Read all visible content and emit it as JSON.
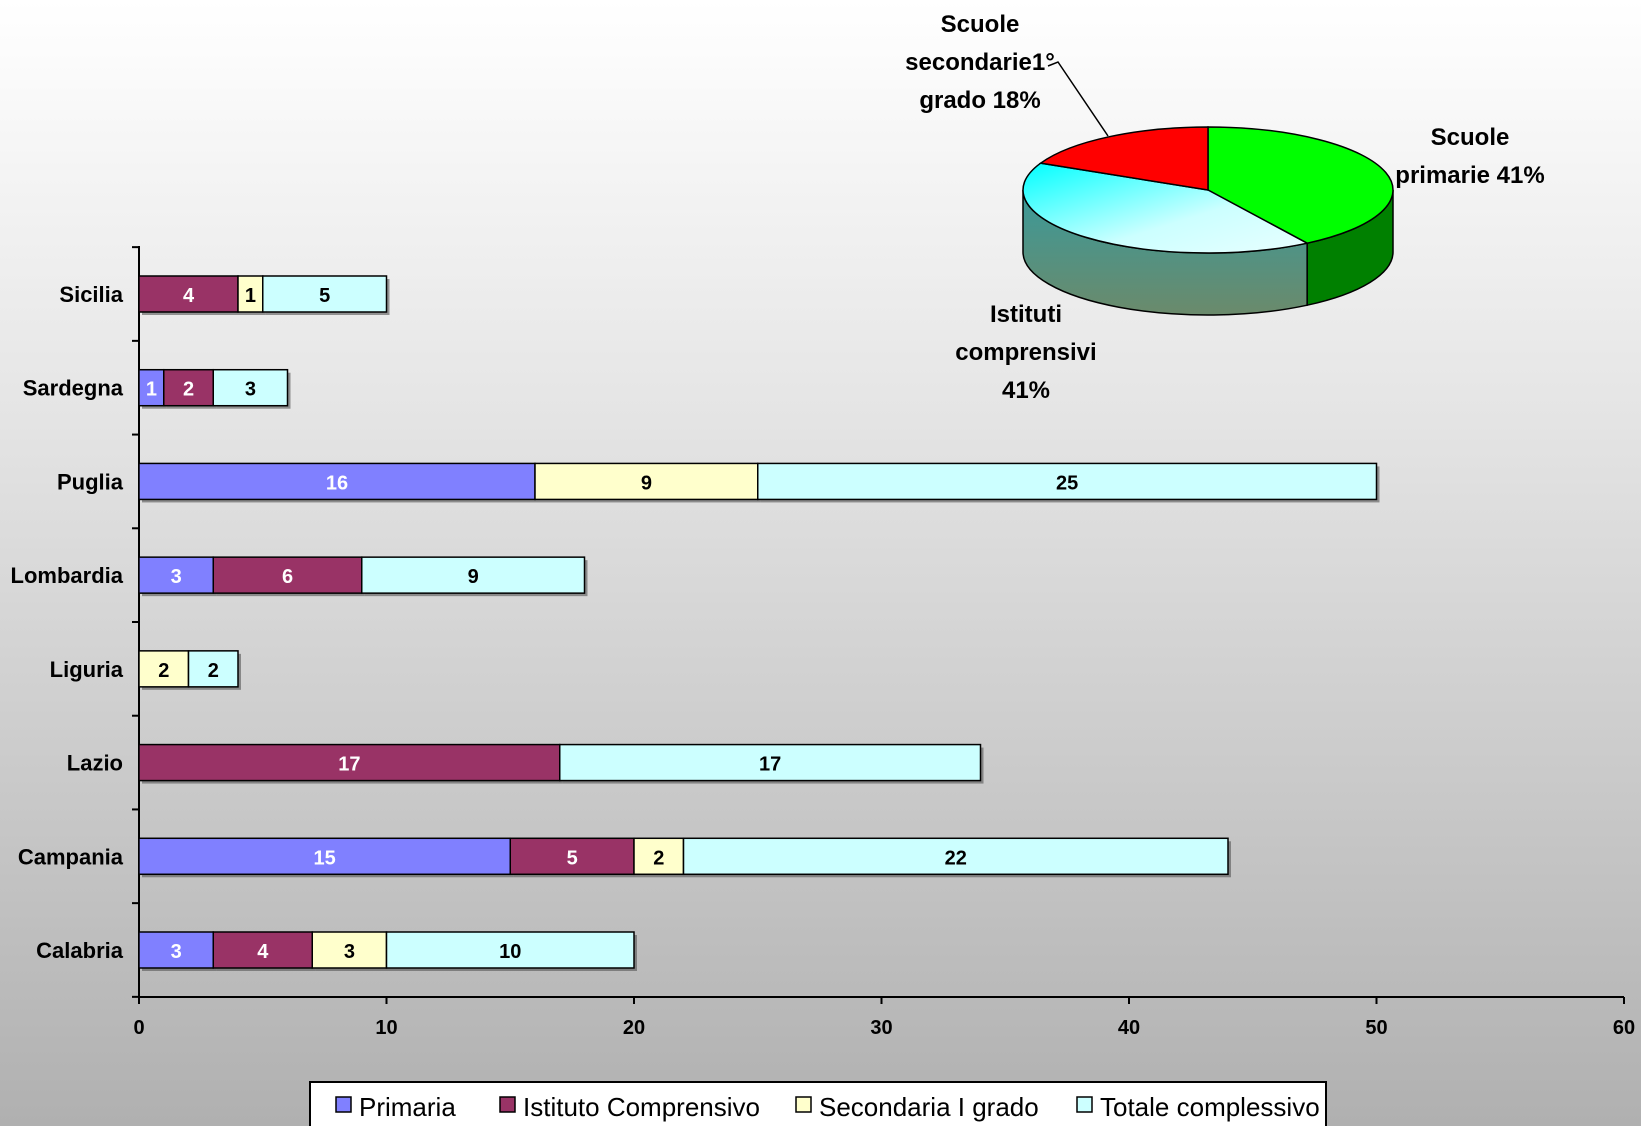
{
  "chart_data": [
    {
      "type": "bar",
      "orientation": "horizontal",
      "stacked": true,
      "categories": [
        "Calabria",
        "Campania",
        "Lazio",
        "Liguria",
        "Lombardia",
        "Puglia",
        "Sardegna",
        "Sicilia"
      ],
      "series": [
        {
          "name": "Primaria",
          "values": [
            3,
            15,
            0,
            0,
            3,
            16,
            1,
            0
          ]
        },
        {
          "name": "Istituto Comprensivo",
          "values": [
            4,
            5,
            17,
            0,
            6,
            0,
            2,
            4
          ]
        },
        {
          "name": "Secondaria I grado",
          "values": [
            3,
            2,
            0,
            2,
            0,
            9,
            0,
            1
          ]
        },
        {
          "name": "Totale complessivo",
          "values": [
            10,
            22,
            17,
            2,
            9,
            25,
            3,
            5
          ]
        }
      ],
      "xlim": [
        0,
        60
      ],
      "xticks": [
        "0",
        "10",
        "20",
        "30",
        "40",
        "50",
        "60"
      ],
      "legend": "bottom",
      "colors": {
        "Primaria": "#8080ff",
        "Istituto Comprensivo": "#993366",
        "Secondaria I grado": "#ffffcc",
        "Totale complessivo": "#ccffff"
      }
    },
    {
      "type": "pie",
      "style": "3d",
      "slices": [
        {
          "label": "Scuole primarie 41%",
          "lines": [
            "Scuole",
            "primarie 41%"
          ],
          "value": 41,
          "color": "#00ff00"
        },
        {
          "label": "Istituti comprensivi 41%",
          "lines": [
            "Istituti",
            "comprensivi",
            "41%"
          ],
          "value": 41,
          "color": "#ccffff"
        },
        {
          "label": "Scuole secondarie1° grado 18%",
          "lines": [
            "Scuole",
            "secondarie1°",
            "grado 18%"
          ],
          "value": 18,
          "color": "#ff0000"
        }
      ]
    }
  ]
}
